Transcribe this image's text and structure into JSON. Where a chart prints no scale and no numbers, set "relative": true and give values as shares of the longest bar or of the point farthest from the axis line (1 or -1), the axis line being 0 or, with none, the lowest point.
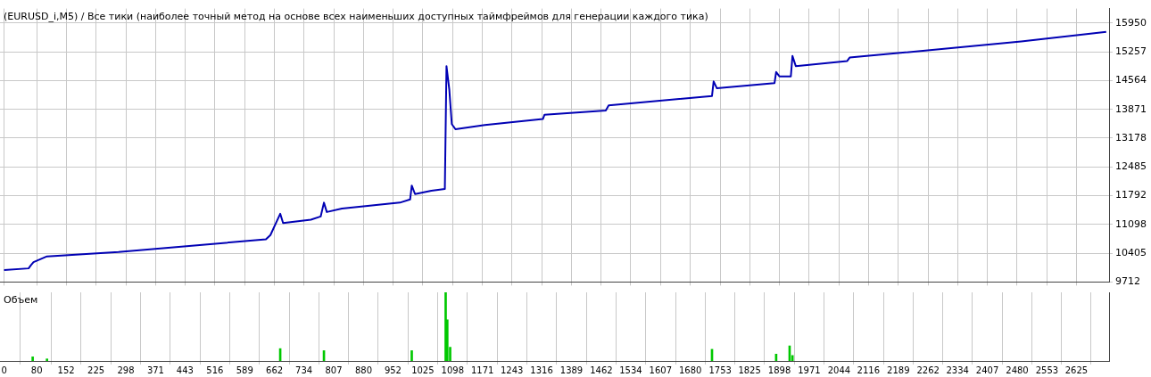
{
  "chart_data": [
    {
      "type": "line",
      "title": "(EURUSD_i,M5) / Все тики (наиболее точный метод на основе всех наименьших доступных таймфреймов для генерации каждого тика)",
      "xlim": [
        -10,
        2705
      ],
      "xticks": [
        0,
        80,
        152,
        225,
        298,
        371,
        443,
        516,
        589,
        662,
        734,
        807,
        880,
        952,
        1025,
        1098,
        1171,
        1243,
        1316,
        1389,
        1462,
        1534,
        1607,
        1680,
        1753,
        1825,
        1898,
        1971,
        2044,
        2116,
        2189,
        2262,
        2334,
        2407,
        2480,
        2553,
        2625
      ],
      "ylim": [
        9712,
        16300
      ],
      "yticks": [
        9712,
        10405,
        11098,
        11792,
        12485,
        13178,
        13871,
        14564,
        15257,
        15950
      ],
      "tick_labels": "y",
      "grid": true,
      "legend": false,
      "marker": "none",
      "line_style": "solid",
      "series": [
        {
          "color": "#0000b4",
          "x": [
            0,
            60,
            66,
            72,
            105,
            280,
            641,
            652,
            676,
            683,
            751,
            775,
            783,
            790,
            827,
            969,
            994,
            998,
            1006,
            1046,
            1079,
            1083,
            1090,
            1096,
            1105,
            1177,
            1319,
            1323,
            1473,
            1480,
            1733,
            1737,
            1745,
            1886,
            1890,
            1898,
            1926,
            1930,
            1938,
            2064,
            2070,
            2206,
            2490,
            2698
          ],
          "values": [
            10000,
            10040,
            10120,
            10190,
            10329,
            10432,
            10740,
            10843,
            11357,
            11131,
            11213,
            11290,
            11624,
            11398,
            11480,
            11624,
            11700,
            12035,
            11830,
            11912,
            11953,
            14914,
            14338,
            13516,
            13392,
            13495,
            13639,
            13742,
            13844,
            13968,
            14194,
            14544,
            14379,
            14503,
            14770,
            14667,
            14667,
            15160,
            14914,
            15037,
            15119,
            15243,
            15510,
            15736
          ]
        }
      ]
    },
    {
      "type": "bar",
      "title": "Объем",
      "relative": true,
      "xlim": [
        -10,
        2705
      ],
      "xticks": [
        0,
        80,
        152,
        225,
        298,
        371,
        443,
        516,
        589,
        662,
        734,
        807,
        880,
        952,
        1025,
        1098,
        1171,
        1243,
        1316,
        1389,
        1462,
        1534,
        1607,
        1680,
        1753,
        1825,
        1898,
        1971,
        2044,
        2116,
        2189,
        2262,
        2334,
        2407,
        2480,
        2553,
        2625
      ],
      "tick_labels": "x",
      "grid": "x",
      "legend": false,
      "series": [
        {
          "color": "#00c800",
          "x": [
            70,
            105,
            676,
            783,
            998,
            1081,
            1085,
            1092,
            1733,
            1890,
            1923,
            1930
          ],
          "values": [
            0.06,
            0.03,
            0.18,
            0.15,
            0.15,
            1,
            0.6,
            0.2,
            0.17,
            0.1,
            0.22,
            0.08
          ]
        }
      ]
    }
  ]
}
